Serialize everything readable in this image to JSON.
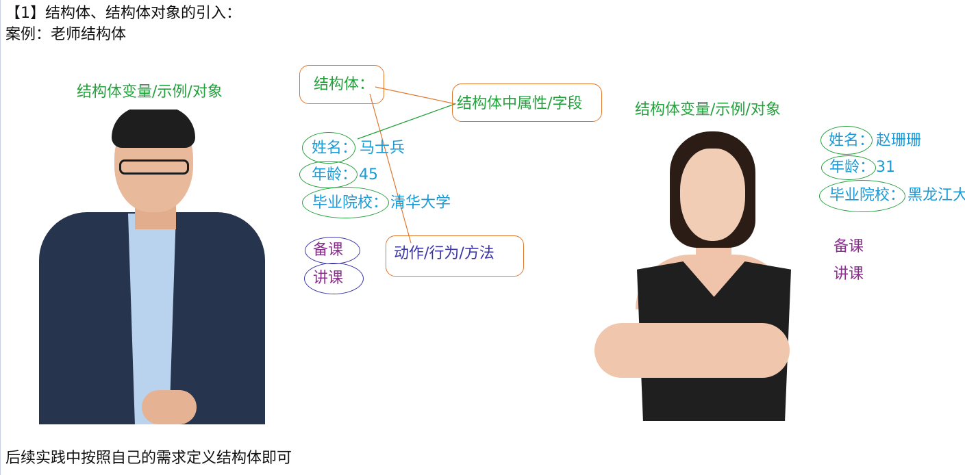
{
  "heading": "【1】结构体、结构体对象的引入：",
  "case_label": "案例：老师结构体",
  "left_caption": "结构体变量/示例/对象",
  "right_caption": "结构体变量/示例/对象",
  "struct_label": "结构体：",
  "fields_label": "结构体中属性/字段",
  "methods_label": "动作/行为/方法",
  "teacher1": {
    "name_key": "姓名：",
    "name_value": "马士兵",
    "age_key": "年龄：",
    "age_value": "45",
    "school_key": "毕业院校：",
    "school_value": "清华大学",
    "action1": "备课",
    "action2": "讲课"
  },
  "teacher2": {
    "name_key": "姓名：",
    "name_value": "赵珊珊",
    "age_key": "年龄：",
    "age_value": "31",
    "school_key": "毕业院校：",
    "school_value": "黑龙江大",
    "action1": "备课",
    "action2": "讲课"
  },
  "footer_note": "后续实践中按照自己的需求定义结构体即可",
  "colors": {
    "green": "#23a13c",
    "blue": "#1a9ad6",
    "purple": "#8b2f8f",
    "violet": "#3b35a6",
    "orange": "#e0762a"
  }
}
